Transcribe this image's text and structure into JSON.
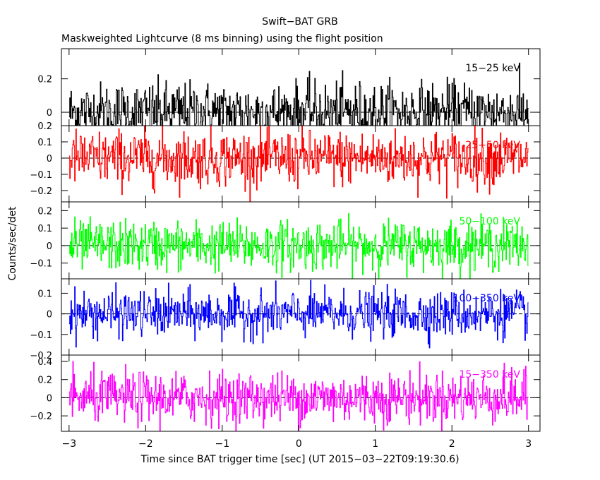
{
  "chart_data": {
    "type": "line",
    "title": "Swift−BAT GRB",
    "subtitle": "Maskweighted Lightcurve (8 ms binning) using the flight position",
    "xlabel": "Time since BAT trigger time [sec] (UT 2015−03−22T09:19:30.6)",
    "ylabel": "Counts/sec/det",
    "xlim": [
      -3.1,
      3.15
    ],
    "x_ticks": [
      {
        "value": -3,
        "label": "−3"
      },
      {
        "value": -2,
        "label": "−2"
      },
      {
        "value": -1,
        "label": "−1"
      },
      {
        "value": 0,
        "label": "0"
      },
      {
        "value": 1,
        "label": "1"
      },
      {
        "value": 2,
        "label": "2"
      },
      {
        "value": 3,
        "label": "3"
      }
    ],
    "x_range": [
      -3.0,
      2.992
    ],
    "bin_width": 0.008,
    "panels": [
      {
        "name": "15−25 keV",
        "color": "#000000",
        "ylim": [
          -0.08,
          0.38
        ],
        "amplitude": 0.09,
        "y_ticks": [
          {
            "value": 0,
            "label": "0"
          },
          {
            "value": 0.2,
            "label": "0.2"
          }
        ]
      },
      {
        "name": "25−50 keV",
        "color": "#ff0000",
        "ylim": [
          -0.27,
          0.2
        ],
        "amplitude": 0.085,
        "y_ticks": [
          {
            "value": -0.2,
            "label": "−0.2"
          },
          {
            "value": -0.1,
            "label": "−0.1"
          },
          {
            "value": 0,
            "label": "0"
          },
          {
            "value": 0.1,
            "label": "0.1"
          },
          {
            "value": 0.2,
            "label": "0.2"
          }
        ]
      },
      {
        "name": "50−100 keV",
        "color": "#00ff00",
        "ylim": [
          -0.19,
          0.25
        ],
        "amplitude": 0.07,
        "y_ticks": [
          {
            "value": -0.1,
            "label": "−0.1"
          },
          {
            "value": 0,
            "label": "0"
          },
          {
            "value": 0.1,
            "label": "0.1"
          },
          {
            "value": 0.2,
            "label": "0.2"
          }
        ]
      },
      {
        "name": "100−350 keV",
        "color": "#0000ff",
        "ylim": [
          -0.2,
          0.17
        ],
        "amplitude": 0.055,
        "y_ticks": [
          {
            "value": -0.2,
            "label": "−0.2"
          },
          {
            "value": -0.1,
            "label": "−0.1"
          },
          {
            "value": 0,
            "label": "0"
          },
          {
            "value": 0.1,
            "label": "0.1"
          }
        ]
      },
      {
        "name": "15−350 keV",
        "color": "#ff00ff",
        "ylim": [
          -0.37,
          0.47
        ],
        "amplitude": 0.14,
        "y_ticks": [
          {
            "value": -0.2,
            "label": "−0.2"
          },
          {
            "value": 0,
            "label": "0"
          },
          {
            "value": 0.2,
            "label": "0.2"
          },
          {
            "value": 0.4,
            "label": "0.4"
          }
        ]
      }
    ],
    "series_note": ""
  }
}
